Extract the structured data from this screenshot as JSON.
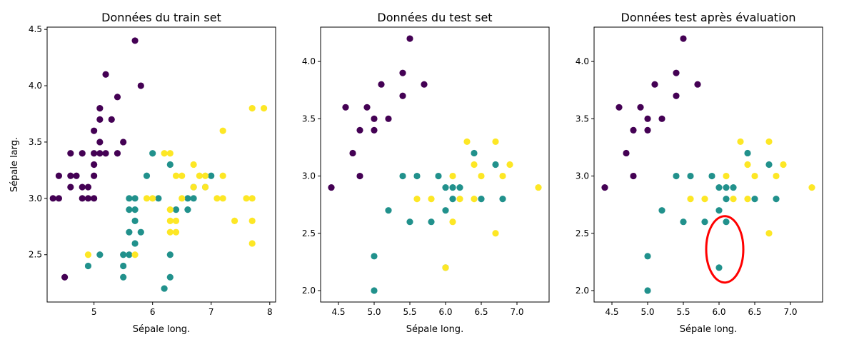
{
  "colors": {
    "0": "#440154",
    "1": "#21918c",
    "2": "#fde725",
    "axis": "#000000",
    "highlight": "#ff0000"
  },
  "chart_data": [
    {
      "type": "scatter",
      "title": "Données du train set",
      "xlabel": "Sépale long.",
      "ylabel": "Sépale larg.",
      "xlim": [
        4.2,
        8.1
      ],
      "ylim": [
        2.08,
        4.52
      ],
      "xticks": [
        {
          "v": 5,
          "label": "5"
        },
        {
          "v": 6,
          "label": "6"
        },
        {
          "v": 7,
          "label": "7"
        },
        {
          "v": 8,
          "label": "8"
        }
      ],
      "yticks": [
        {
          "v": 2.5,
          "label": "2.5"
        },
        {
          "v": 3.0,
          "label": "3.0"
        },
        {
          "v": 3.5,
          "label": "3.5"
        },
        {
          "v": 4.0,
          "label": "4.0"
        },
        {
          "v": 4.5,
          "label": "4.5"
        }
      ],
      "points": [
        {
          "x": 5.7,
          "y": 4.4,
          "c": 0
        },
        {
          "x": 5.2,
          "y": 4.1,
          "c": 0
        },
        {
          "x": 5.8,
          "y": 4.0,
          "c": 0
        },
        {
          "x": 5.4,
          "y": 3.9,
          "c": 0
        },
        {
          "x": 5.1,
          "y": 3.8,
          "c": 0
        },
        {
          "x": 5.1,
          "y": 3.7,
          "c": 0
        },
        {
          "x": 5.3,
          "y": 3.7,
          "c": 0
        },
        {
          "x": 5.0,
          "y": 3.6,
          "c": 0
        },
        {
          "x": 5.1,
          "y": 3.5,
          "c": 0
        },
        {
          "x": 5.5,
          "y": 3.5,
          "c": 0
        },
        {
          "x": 4.6,
          "y": 3.4,
          "c": 0
        },
        {
          "x": 4.8,
          "y": 3.4,
          "c": 0
        },
        {
          "x": 5.0,
          "y": 3.4,
          "c": 0
        },
        {
          "x": 5.1,
          "y": 3.4,
          "c": 0
        },
        {
          "x": 5.2,
          "y": 3.4,
          "c": 0
        },
        {
          "x": 5.4,
          "y": 3.4,
          "c": 0
        },
        {
          "x": 5.0,
          "y": 3.3,
          "c": 0
        },
        {
          "x": 4.4,
          "y": 3.2,
          "c": 0
        },
        {
          "x": 4.6,
          "y": 3.2,
          "c": 0
        },
        {
          "x": 4.7,
          "y": 3.2,
          "c": 0
        },
        {
          "x": 5.0,
          "y": 3.2,
          "c": 0
        },
        {
          "x": 4.6,
          "y": 3.1,
          "c": 0
        },
        {
          "x": 4.8,
          "y": 3.1,
          "c": 0
        },
        {
          "x": 4.9,
          "y": 3.1,
          "c": 0
        },
        {
          "x": 4.3,
          "y": 3.0,
          "c": 0
        },
        {
          "x": 4.4,
          "y": 3.0,
          "c": 0
        },
        {
          "x": 4.8,
          "y": 3.0,
          "c": 0
        },
        {
          "x": 4.9,
          "y": 3.0,
          "c": 0
        },
        {
          "x": 5.0,
          "y": 3.0,
          "c": 0
        },
        {
          "x": 4.5,
          "y": 2.3,
          "c": 0
        },
        {
          "x": 6.0,
          "y": 3.4,
          "c": 1
        },
        {
          "x": 6.3,
          "y": 3.3,
          "c": 1
        },
        {
          "x": 5.9,
          "y": 3.2,
          "c": 1
        },
        {
          "x": 7.0,
          "y": 3.2,
          "c": 1
        },
        {
          "x": 6.7,
          "y": 3.1,
          "c": 1
        },
        {
          "x": 6.9,
          "y": 3.1,
          "c": 1
        },
        {
          "x": 5.6,
          "y": 3.0,
          "c": 1
        },
        {
          "x": 5.7,
          "y": 3.0,
          "c": 1
        },
        {
          "x": 6.1,
          "y": 3.0,
          "c": 1
        },
        {
          "x": 6.6,
          "y": 3.0,
          "c": 1
        },
        {
          "x": 6.7,
          "y": 3.0,
          "c": 1
        },
        {
          "x": 5.6,
          "y": 2.9,
          "c": 1
        },
        {
          "x": 5.7,
          "y": 2.9,
          "c": 1
        },
        {
          "x": 6.4,
          "y": 2.9,
          "c": 1
        },
        {
          "x": 6.6,
          "y": 2.9,
          "c": 1
        },
        {
          "x": 5.7,
          "y": 2.8,
          "c": 1
        },
        {
          "x": 5.6,
          "y": 2.7,
          "c": 1
        },
        {
          "x": 5.8,
          "y": 2.7,
          "c": 1
        },
        {
          "x": 5.7,
          "y": 2.6,
          "c": 1
        },
        {
          "x": 5.1,
          "y": 2.5,
          "c": 1
        },
        {
          "x": 5.5,
          "y": 2.5,
          "c": 1
        },
        {
          "x": 5.6,
          "y": 2.5,
          "c": 1
        },
        {
          "x": 6.3,
          "y": 2.5,
          "c": 1
        },
        {
          "x": 4.9,
          "y": 2.4,
          "c": 1
        },
        {
          "x": 5.5,
          "y": 2.4,
          "c": 1
        },
        {
          "x": 5.5,
          "y": 2.3,
          "c": 1
        },
        {
          "x": 6.3,
          "y": 2.3,
          "c": 1
        },
        {
          "x": 6.2,
          "y": 2.2,
          "c": 1
        },
        {
          "x": 7.7,
          "y": 3.8,
          "c": 2
        },
        {
          "x": 7.9,
          "y": 3.8,
          "c": 2
        },
        {
          "x": 7.2,
          "y": 3.6,
          "c": 2
        },
        {
          "x": 6.2,
          "y": 3.4,
          "c": 2
        },
        {
          "x": 6.3,
          "y": 3.4,
          "c": 2
        },
        {
          "x": 6.7,
          "y": 3.3,
          "c": 2
        },
        {
          "x": 6.4,
          "y": 3.2,
          "c": 2
        },
        {
          "x": 6.5,
          "y": 3.2,
          "c": 2
        },
        {
          "x": 6.8,
          "y": 3.2,
          "c": 2
        },
        {
          "x": 6.9,
          "y": 3.2,
          "c": 2
        },
        {
          "x": 7.2,
          "y": 3.2,
          "c": 2
        },
        {
          "x": 6.7,
          "y": 3.1,
          "c": 2
        },
        {
          "x": 6.9,
          "y": 3.1,
          "c": 2
        },
        {
          "x": 5.9,
          "y": 3.0,
          "c": 2
        },
        {
          "x": 6.0,
          "y": 3.0,
          "c": 2
        },
        {
          "x": 6.5,
          "y": 3.0,
          "c": 2
        },
        {
          "x": 7.1,
          "y": 3.0,
          "c": 2
        },
        {
          "x": 7.2,
          "y": 3.0,
          "c": 2
        },
        {
          "x": 7.6,
          "y": 3.0,
          "c": 2
        },
        {
          "x": 7.7,
          "y": 3.0,
          "c": 2
        },
        {
          "x": 6.3,
          "y": 2.9,
          "c": 2
        },
        {
          "x": 6.3,
          "y": 2.8,
          "c": 2
        },
        {
          "x": 6.4,
          "y": 2.8,
          "c": 2
        },
        {
          "x": 7.4,
          "y": 2.8,
          "c": 2
        },
        {
          "x": 7.7,
          "y": 2.8,
          "c": 2
        },
        {
          "x": 6.3,
          "y": 2.7,
          "c": 2
        },
        {
          "x": 6.4,
          "y": 2.7,
          "c": 2
        },
        {
          "x": 7.7,
          "y": 2.6,
          "c": 2
        },
        {
          "x": 4.9,
          "y": 2.5,
          "c": 2
        },
        {
          "x": 5.7,
          "y": 2.5,
          "c": 2
        }
      ]
    },
    {
      "type": "scatter",
      "title": "Données du test set",
      "xlabel": "Sépale long.",
      "ylabel": "",
      "xlim": [
        4.25,
        7.45
      ],
      "ylim": [
        1.9,
        4.3
      ],
      "xticks": [
        {
          "v": 4.5,
          "label": "4.5"
        },
        {
          "v": 5.0,
          "label": "5.0"
        },
        {
          "v": 5.5,
          "label": "5.5"
        },
        {
          "v": 6.0,
          "label": "6.0"
        },
        {
          "v": 6.5,
          "label": "6.5"
        },
        {
          "v": 7.0,
          "label": "7.0"
        }
      ],
      "yticks": [
        {
          "v": 2.0,
          "label": "2.0"
        },
        {
          "v": 2.5,
          "label": "2.5"
        },
        {
          "v": 3.0,
          "label": "3.0"
        },
        {
          "v": 3.5,
          "label": "3.5"
        },
        {
          "v": 4.0,
          "label": "4.0"
        }
      ],
      "points": [
        {
          "x": 5.5,
          "y": 4.2,
          "c": 0
        },
        {
          "x": 5.4,
          "y": 3.9,
          "c": 0
        },
        {
          "x": 5.1,
          "y": 3.8,
          "c": 0
        },
        {
          "x": 5.7,
          "y": 3.8,
          "c": 0
        },
        {
          "x": 5.4,
          "y": 3.7,
          "c": 0
        },
        {
          "x": 4.6,
          "y": 3.6,
          "c": 0
        },
        {
          "x": 4.9,
          "y": 3.6,
          "c": 0
        },
        {
          "x": 5.0,
          "y": 3.5,
          "c": 0
        },
        {
          "x": 5.2,
          "y": 3.5,
          "c": 0
        },
        {
          "x": 4.8,
          "y": 3.4,
          "c": 0
        },
        {
          "x": 5.0,
          "y": 3.4,
          "c": 0
        },
        {
          "x": 4.7,
          "y": 3.2,
          "c": 0
        },
        {
          "x": 4.8,
          "y": 3.0,
          "c": 0
        },
        {
          "x": 4.4,
          "y": 2.9,
          "c": 0
        },
        {
          "x": 6.4,
          "y": 3.2,
          "c": 1
        },
        {
          "x": 6.7,
          "y": 3.1,
          "c": 1
        },
        {
          "x": 5.4,
          "y": 3.0,
          "c": 1
        },
        {
          "x": 5.6,
          "y": 3.0,
          "c": 1
        },
        {
          "x": 5.9,
          "y": 3.0,
          "c": 1
        },
        {
          "x": 6.0,
          "y": 2.9,
          "c": 1
        },
        {
          "x": 6.1,
          "y": 2.9,
          "c": 1
        },
        {
          "x": 6.2,
          "y": 2.9,
          "c": 1
        },
        {
          "x": 6.1,
          "y": 2.8,
          "c": 1
        },
        {
          "x": 6.5,
          "y": 2.8,
          "c": 1
        },
        {
          "x": 6.8,
          "y": 2.8,
          "c": 1
        },
        {
          "x": 5.2,
          "y": 2.7,
          "c": 1
        },
        {
          "x": 6.0,
          "y": 2.7,
          "c": 1
        },
        {
          "x": 5.5,
          "y": 2.6,
          "c": 1
        },
        {
          "x": 5.8,
          "y": 2.6,
          "c": 1
        },
        {
          "x": 5.0,
          "y": 2.3,
          "c": 1
        },
        {
          "x": 6.0,
          "y": 2.2,
          "c": 1
        },
        {
          "x": 5.0,
          "y": 2.0,
          "c": 1
        },
        {
          "x": 6.3,
          "y": 3.3,
          "c": 2
        },
        {
          "x": 6.7,
          "y": 3.3,
          "c": 2
        },
        {
          "x": 6.4,
          "y": 3.1,
          "c": 2
        },
        {
          "x": 6.9,
          "y": 3.1,
          "c": 2
        },
        {
          "x": 6.1,
          "y": 3.0,
          "c": 2
        },
        {
          "x": 6.5,
          "y": 3.0,
          "c": 2
        },
        {
          "x": 6.8,
          "y": 3.0,
          "c": 2
        },
        {
          "x": 7.3,
          "y": 2.9,
          "c": 2
        },
        {
          "x": 5.6,
          "y": 2.8,
          "c": 2
        },
        {
          "x": 5.8,
          "y": 2.8,
          "c": 2
        },
        {
          "x": 6.2,
          "y": 2.8,
          "c": 2
        },
        {
          "x": 6.4,
          "y": 2.8,
          "c": 2
        },
        {
          "x": 6.1,
          "y": 2.6,
          "c": 2
        },
        {
          "x": 6.7,
          "y": 2.5,
          "c": 2
        },
        {
          "x": 6.0,
          "y": 2.2,
          "c": 2
        }
      ]
    },
    {
      "type": "scatter",
      "title": "Données test après évaluation",
      "xlabel": "Sépale long.",
      "ylabel": "",
      "xlim": [
        4.25,
        7.45
      ],
      "ylim": [
        1.9,
        4.3
      ],
      "xticks": [
        {
          "v": 4.5,
          "label": "4.5"
        },
        {
          "v": 5.0,
          "label": "5.0"
        },
        {
          "v": 5.5,
          "label": "5.5"
        },
        {
          "v": 6.0,
          "label": "6.0"
        },
        {
          "v": 6.5,
          "label": "6.5"
        },
        {
          "v": 7.0,
          "label": "7.0"
        }
      ],
      "yticks": [
        {
          "v": 2.0,
          "label": "2.0"
        },
        {
          "v": 2.5,
          "label": "2.5"
        },
        {
          "v": 3.0,
          "label": "3.0"
        },
        {
          "v": 3.5,
          "label": "3.5"
        },
        {
          "v": 4.0,
          "label": "4.0"
        }
      ],
      "highlight": {
        "cx": 6.08,
        "cy": 2.36,
        "rx": 0.26,
        "ry": 0.29
      },
      "points": [
        {
          "x": 5.5,
          "y": 4.2,
          "c": 0
        },
        {
          "x": 5.4,
          "y": 3.9,
          "c": 0
        },
        {
          "x": 5.1,
          "y": 3.8,
          "c": 0
        },
        {
          "x": 5.7,
          "y": 3.8,
          "c": 0
        },
        {
          "x": 5.4,
          "y": 3.7,
          "c": 0
        },
        {
          "x": 4.6,
          "y": 3.6,
          "c": 0
        },
        {
          "x": 4.9,
          "y": 3.6,
          "c": 0
        },
        {
          "x": 5.0,
          "y": 3.5,
          "c": 0
        },
        {
          "x": 5.2,
          "y": 3.5,
          "c": 0
        },
        {
          "x": 4.8,
          "y": 3.4,
          "c": 0
        },
        {
          "x": 5.0,
          "y": 3.4,
          "c": 0
        },
        {
          "x": 4.7,
          "y": 3.2,
          "c": 0
        },
        {
          "x": 4.8,
          "y": 3.0,
          "c": 0
        },
        {
          "x": 4.4,
          "y": 2.9,
          "c": 0
        },
        {
          "x": 6.4,
          "y": 3.2,
          "c": 1
        },
        {
          "x": 6.7,
          "y": 3.1,
          "c": 1
        },
        {
          "x": 5.4,
          "y": 3.0,
          "c": 1
        },
        {
          "x": 5.6,
          "y": 3.0,
          "c": 1
        },
        {
          "x": 5.9,
          "y": 3.0,
          "c": 1
        },
        {
          "x": 6.0,
          "y": 2.9,
          "c": 1
        },
        {
          "x": 6.1,
          "y": 2.9,
          "c": 1
        },
        {
          "x": 6.2,
          "y": 2.9,
          "c": 1
        },
        {
          "x": 6.1,
          "y": 2.8,
          "c": 1
        },
        {
          "x": 6.5,
          "y": 2.8,
          "c": 1
        },
        {
          "x": 6.8,
          "y": 2.8,
          "c": 1
        },
        {
          "x": 5.2,
          "y": 2.7,
          "c": 1
        },
        {
          "x": 6.0,
          "y": 2.7,
          "c": 1
        },
        {
          "x": 5.5,
          "y": 2.6,
          "c": 1
        },
        {
          "x": 5.8,
          "y": 2.6,
          "c": 1
        },
        {
          "x": 6.1,
          "y": 2.6,
          "c": 1
        },
        {
          "x": 5.0,
          "y": 2.3,
          "c": 1
        },
        {
          "x": 6.0,
          "y": 2.2,
          "c": 1
        },
        {
          "x": 5.0,
          "y": 2.0,
          "c": 1
        },
        {
          "x": 6.3,
          "y": 3.3,
          "c": 2
        },
        {
          "x": 6.7,
          "y": 3.3,
          "c": 2
        },
        {
          "x": 6.4,
          "y": 3.1,
          "c": 2
        },
        {
          "x": 6.9,
          "y": 3.1,
          "c": 2
        },
        {
          "x": 6.1,
          "y": 3.0,
          "c": 2
        },
        {
          "x": 6.5,
          "y": 3.0,
          "c": 2
        },
        {
          "x": 6.8,
          "y": 3.0,
          "c": 2
        },
        {
          "x": 7.3,
          "y": 2.9,
          "c": 2
        },
        {
          "x": 5.6,
          "y": 2.8,
          "c": 2
        },
        {
          "x": 5.8,
          "y": 2.8,
          "c": 2
        },
        {
          "x": 6.2,
          "y": 2.8,
          "c": 2
        },
        {
          "x": 6.4,
          "y": 2.8,
          "c": 2
        },
        {
          "x": 6.7,
          "y": 2.5,
          "c": 2
        }
      ]
    }
  ]
}
